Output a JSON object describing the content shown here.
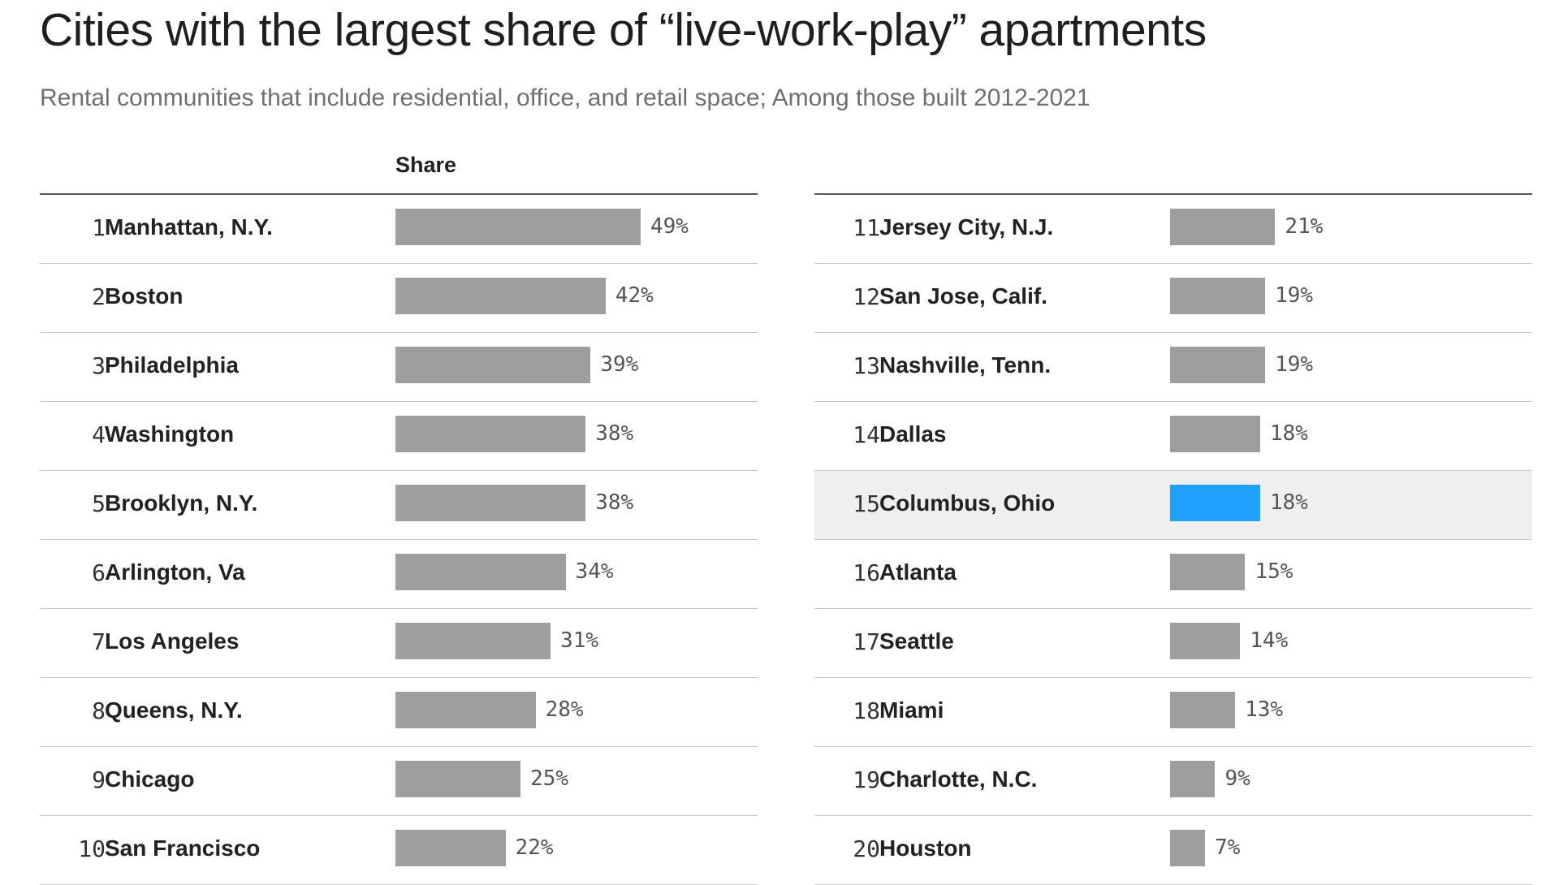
{
  "title": "Cities with the largest share of “live-work-play” apartments",
  "subtitle": "Rental communities that include residential, office, and retail space; Among those built 2012-2021",
  "column_header": "Share",
  "colors": {
    "bar": "#9e9e9e",
    "highlight": "#1ea0ff",
    "highlight_row": "#efefef"
  },
  "chart_data": {
    "type": "bar",
    "orientation": "horizontal",
    "title": "Cities with the largest share of “live-work-play” apartments",
    "subtitle": "Rental communities that include residential, office, and retail space; Among those built 2012-2021",
    "value_label": "Share",
    "xlim": [
      0,
      49
    ],
    "highlight": "Columbus, Ohio",
    "rows": [
      {
        "rank": "1",
        "city": "Manhattan, N.Y.",
        "value": 49,
        "label": "49%"
      },
      {
        "rank": "2",
        "city": "Boston",
        "value": 42,
        "label": "42%"
      },
      {
        "rank": "3",
        "city": "Philadelphia",
        "value": 39,
        "label": "39%"
      },
      {
        "rank": "4",
        "city": "Washington",
        "value": 38,
        "label": "38%"
      },
      {
        "rank": "5",
        "city": "Brooklyn, N.Y.",
        "value": 38,
        "label": "38%"
      },
      {
        "rank": "6",
        "city": "Arlington, Va",
        "value": 34,
        "label": "34%"
      },
      {
        "rank": "7",
        "city": "Los Angeles",
        "value": 31,
        "label": "31%"
      },
      {
        "rank": "8",
        "city": "Queens, N.Y.",
        "value": 28,
        "label": "28%"
      },
      {
        "rank": "9",
        "city": "Chicago",
        "value": 25,
        "label": "25%"
      },
      {
        "rank": "10",
        "city": "San Francisco",
        "value": 22,
        "label": "22%"
      },
      {
        "rank": "11",
        "city": "Jersey City, N.J.",
        "value": 21,
        "label": "21%"
      },
      {
        "rank": "12",
        "city": "San Jose, Calif.",
        "value": 19,
        "label": "19%"
      },
      {
        "rank": "13",
        "city": "Nashville, Tenn.",
        "value": 19,
        "label": "19%"
      },
      {
        "rank": "14",
        "city": "Dallas",
        "value": 18,
        "label": "18%"
      },
      {
        "rank": "15",
        "city": "Columbus, Ohio",
        "value": 18,
        "label": "18%"
      },
      {
        "rank": "16",
        "city": "Atlanta",
        "value": 15,
        "label": "15%"
      },
      {
        "rank": "17",
        "city": "Seattle",
        "value": 14,
        "label": "14%"
      },
      {
        "rank": "18",
        "city": "Miami",
        "value": 13,
        "label": "13%"
      },
      {
        "rank": "19",
        "city": "Charlotte, N.C.",
        "value": 9,
        "label": "9%"
      },
      {
        "rank": "20",
        "city": "Houston",
        "value": 7,
        "label": "7%"
      }
    ]
  }
}
